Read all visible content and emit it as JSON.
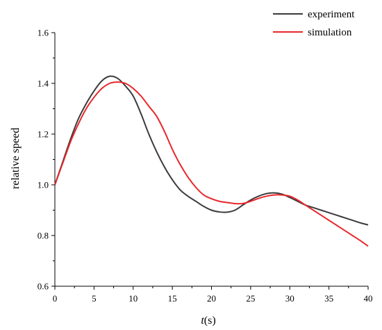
{
  "chart_data": {
    "type": "line",
    "title": "",
    "xlabel_italic": "t",
    "xlabel_rest": "(s)",
    "ylabel": "relative speed",
    "xlim": [
      0,
      40
    ],
    "ylim": [
      0.6,
      1.6
    ],
    "xticks": [
      0,
      5,
      10,
      15,
      20,
      25,
      30,
      35,
      40
    ],
    "yticks": [
      "0.6",
      "0.8",
      "1.0",
      "1.2",
      "1.4",
      "1.6"
    ],
    "grid": false,
    "legend_position": "top-right",
    "series": [
      {
        "name": "experiment",
        "color": "#3a3a3a",
        "points": [
          [
            0,
            1.0
          ],
          [
            1,
            1.09
          ],
          [
            2,
            1.18
          ],
          [
            3,
            1.26
          ],
          [
            4,
            1.32
          ],
          [
            5,
            1.37
          ],
          [
            6,
            1.41
          ],
          [
            7,
            1.428
          ],
          [
            8,
            1.42
          ],
          [
            9,
            1.39
          ],
          [
            10,
            1.35
          ],
          [
            11,
            1.28
          ],
          [
            12,
            1.2
          ],
          [
            13,
            1.13
          ],
          [
            14,
            1.07
          ],
          [
            15,
            1.02
          ],
          [
            16,
            0.98
          ],
          [
            17,
            0.955
          ],
          [
            18,
            0.935
          ],
          [
            19,
            0.915
          ],
          [
            20,
            0.9
          ],
          [
            21,
            0.893
          ],
          [
            22,
            0.892
          ],
          [
            23,
            0.9
          ],
          [
            24,
            0.92
          ],
          [
            25,
            0.94
          ],
          [
            26,
            0.955
          ],
          [
            27,
            0.965
          ],
          [
            28,
            0.968
          ],
          [
            29,
            0.963
          ],
          [
            30,
            0.95
          ],
          [
            31,
            0.935
          ],
          [
            32,
            0.92
          ],
          [
            33,
            0.91
          ],
          [
            34,
            0.9
          ],
          [
            35,
            0.89
          ],
          [
            36,
            0.88
          ],
          [
            37,
            0.87
          ],
          [
            38,
            0.86
          ],
          [
            39,
            0.85
          ],
          [
            40,
            0.842
          ]
        ]
      },
      {
        "name": "simulation",
        "color": "#e8262a",
        "points": [
          [
            0,
            1.0
          ],
          [
            1,
            1.085
          ],
          [
            2,
            1.17
          ],
          [
            3,
            1.24
          ],
          [
            4,
            1.3
          ],
          [
            5,
            1.345
          ],
          [
            6,
            1.38
          ],
          [
            7,
            1.4
          ],
          [
            8,
            1.405
          ],
          [
            9,
            1.4
          ],
          [
            10,
            1.38
          ],
          [
            11,
            1.35
          ],
          [
            12,
            1.31
          ],
          [
            13,
            1.27
          ],
          [
            14,
            1.21
          ],
          [
            15,
            1.14
          ],
          [
            16,
            1.08
          ],
          [
            17,
            1.03
          ],
          [
            18,
            0.99
          ],
          [
            19,
            0.96
          ],
          [
            20,
            0.945
          ],
          [
            21,
            0.935
          ],
          [
            22,
            0.93
          ],
          [
            23,
            0.926
          ],
          [
            24,
            0.926
          ],
          [
            25,
            0.935
          ],
          [
            26,
            0.946
          ],
          [
            27,
            0.955
          ],
          [
            28,
            0.96
          ],
          [
            29,
            0.96
          ],
          [
            30,
            0.955
          ],
          [
            31,
            0.94
          ],
          [
            32,
            0.92
          ],
          [
            33,
            0.9
          ],
          [
            34,
            0.88
          ],
          [
            35,
            0.86
          ],
          [
            36,
            0.84
          ],
          [
            37,
            0.82
          ],
          [
            38,
            0.8
          ],
          [
            39,
            0.78
          ],
          [
            40,
            0.758
          ]
        ]
      }
    ]
  }
}
